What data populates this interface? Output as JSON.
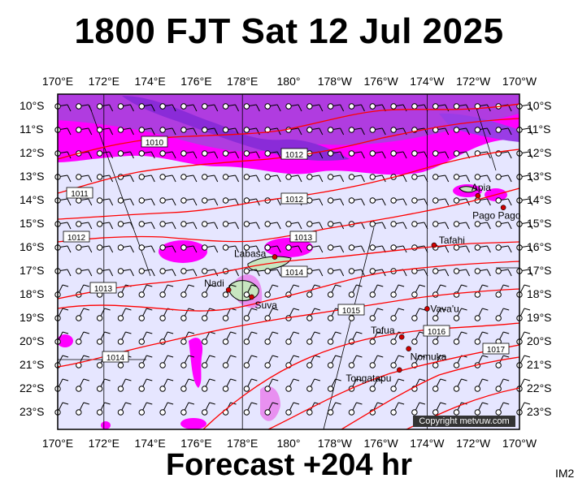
{
  "title": "1800 FJT Sat 12 Jul 2025",
  "subtitle": "Forecast +204 hr",
  "badge": "IM2",
  "copyright": "Copyright metvuw.com",
  "lon_labels": [
    "170°E",
    "172°E",
    "174°E",
    "176°E",
    "178°E",
    "180°",
    "178°W",
    "176°W",
    "174°W",
    "172°W",
    "170°W"
  ],
  "lat_labels": [
    "10°S",
    "11°S",
    "12°S",
    "13°S",
    "14°S",
    "15°S",
    "16°S",
    "17°S",
    "18°S",
    "19°S",
    "20°S",
    "21°S",
    "22°S",
    "23°S"
  ],
  "places": [
    {
      "name": "Apia",
      "lon": -171.8,
      "lat": -13.8
    },
    {
      "name": "Pago Pago",
      "lon": -170.7,
      "lat": -14.3
    },
    {
      "name": "Tafahi",
      "lon": -173.7,
      "lat": -15.9
    },
    {
      "name": "Labasa",
      "lon": 179.4,
      "lat": -16.4
    },
    {
      "name": "Nadi",
      "lon": 177.4,
      "lat": -17.8
    },
    {
      "name": "Suva",
      "lon": 178.4,
      "lat": -18.1
    },
    {
      "name": "Vava'u",
      "lon": -174.0,
      "lat": -18.6
    },
    {
      "name": "Tofua",
      "lon": -175.1,
      "lat": -19.8
    },
    {
      "name": "Nomuka",
      "lon": -174.8,
      "lat": -20.3
    },
    {
      "name": "Tongatapu",
      "lon": -175.2,
      "lat": -21.2
    }
  ],
  "isobar_labels": [
    "1010",
    "1011",
    "1012",
    "1012",
    "1012",
    "1013",
    "1013",
    "1014",
    "1014",
    "1015",
    "1016",
    "1017"
  ],
  "colors": {
    "background": "#e6e6ff",
    "rain_heavy": "#8a2bd8",
    "rain_medium": "#ff00ff",
    "rain_light": "#e890f0",
    "isobar": "#ff0000",
    "grid": "#000000"
  }
}
